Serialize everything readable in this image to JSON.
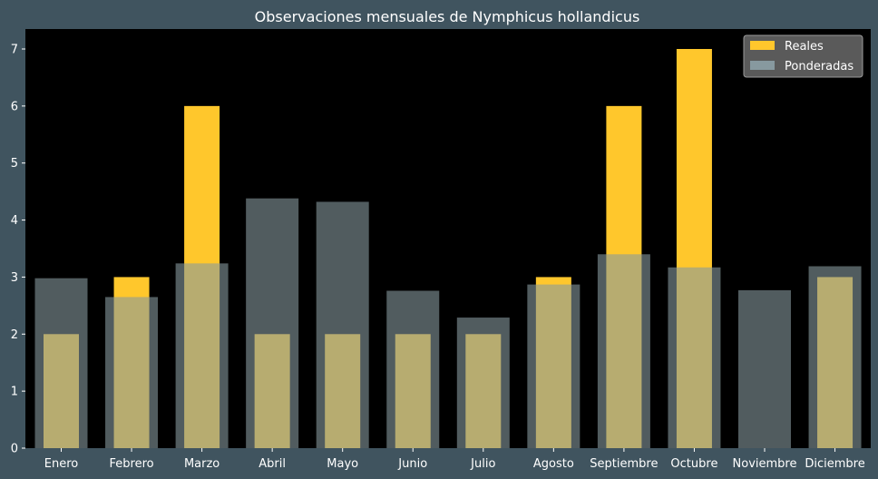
{
  "chart_data": {
    "type": "bar",
    "title": "Observaciones mensuales de Nymphicus hollandicus",
    "xlabel": "",
    "ylabel": "",
    "categories": [
      "Enero",
      "Febrero",
      "Marzo",
      "Abril",
      "Mayo",
      "Junio",
      "Julio",
      "Agosto",
      "Septiembre",
      "Octubre",
      "Noviembre",
      "Diciembre"
    ],
    "series": [
      {
        "name": "Reales",
        "values": [
          2,
          3,
          6,
          2,
          2,
          2,
          2,
          3,
          6,
          7,
          0,
          3
        ],
        "color": "#ffc72c"
      },
      {
        "name": "Ponderadas",
        "values": [
          2.98,
          2.65,
          3.24,
          4.38,
          4.32,
          2.76,
          2.29,
          2.87,
          3.4,
          3.17,
          2.77,
          3.19
        ],
        "color": "#87999f"
      }
    ],
    "ylim": [
      0,
      7.35
    ],
    "yticks": [
      0,
      1,
      2,
      3,
      4,
      5,
      6,
      7
    ],
    "legend": "top-right",
    "grid": false,
    "background": "#000000",
    "figure_background": "#40545f"
  }
}
